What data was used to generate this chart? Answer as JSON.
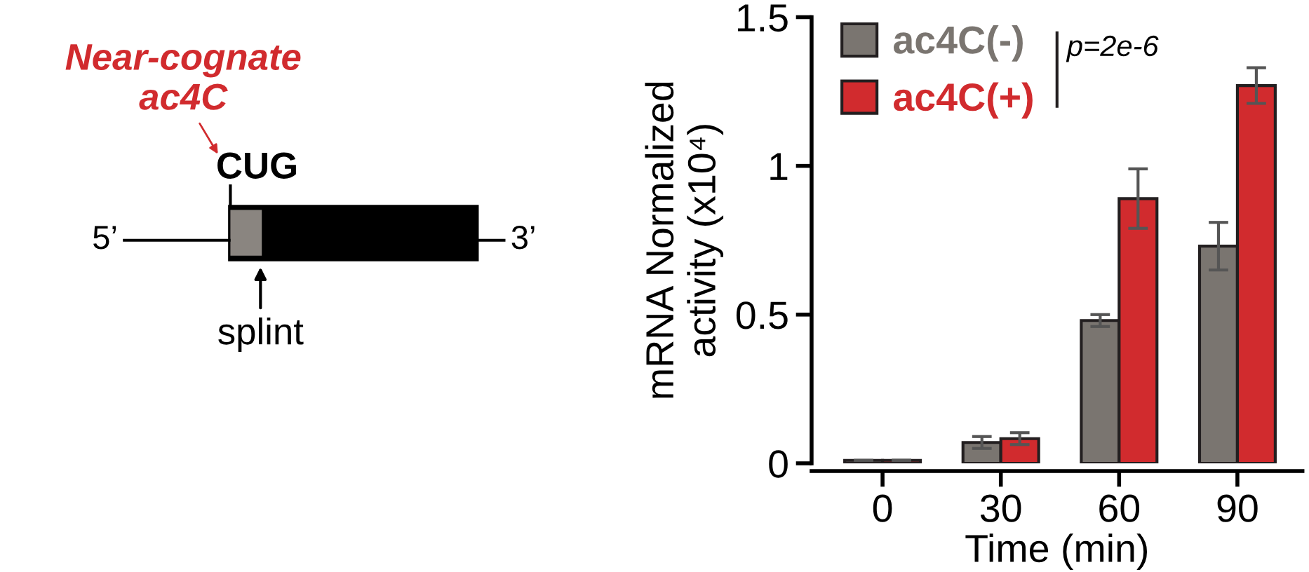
{
  "chart_data": {
    "type": "bar",
    "xlabel": "Time (min)",
    "ylabel": "mRNA Normalized\nactivity (x10⁴)",
    "categories": [
      "0",
      "30",
      "60",
      "90"
    ],
    "series": [
      {
        "name": "ac4C(-)",
        "color": "#7a7570",
        "values": [
          0.01,
          0.07,
          0.48,
          0.73
        ],
        "errors": [
          null,
          0.02,
          0.02,
          0.08
        ]
      },
      {
        "name": "ac4C(+)",
        "color": "#d12b2e",
        "values": [
          0.01,
          0.083,
          0.89,
          1.27
        ],
        "errors": [
          null,
          0.02,
          0.1,
          0.06
        ]
      }
    ],
    "ylim": [
      0,
      1.5
    ],
    "yticks": [
      0,
      0.5,
      1,
      1.5
    ],
    "legend": "top left",
    "grid": false,
    "annotations": [
      "p=2e-6",
      "Near-cognate\nac4C",
      "CUG",
      "5’",
      "3’",
      "splint"
    ]
  }
}
